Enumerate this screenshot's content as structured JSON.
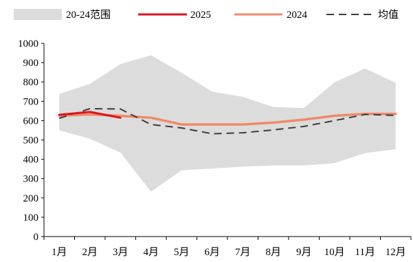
{
  "chart_data": {
    "type": "line",
    "categories": [
      "1月",
      "2月",
      "3月",
      "4月",
      "5月",
      "6月",
      "7月",
      "8月",
      "9月",
      "10月",
      "11月",
      "12月"
    ],
    "ylim": [
      0,
      1000
    ],
    "yticks": [
      0,
      100,
      200,
      300,
      400,
      500,
      600,
      700,
      800,
      900,
      1000
    ],
    "grid": false,
    "legend_position": "top",
    "band": {
      "name": "20-24范围",
      "color": "#dcdcdc",
      "upper": [
        738,
        790,
        893,
        938,
        848,
        750,
        723,
        671,
        665,
        798,
        870,
        795
      ],
      "lower": [
        550,
        506,
        435,
        232,
        343,
        352,
        362,
        368,
        368,
        380,
        432,
        452
      ]
    },
    "series": [
      {
        "name": "2025",
        "color": "#d7141e",
        "style": "solid",
        "values": [
          630,
          645,
          615,
          null,
          null,
          null,
          null,
          null,
          null,
          null,
          null,
          null
        ]
      },
      {
        "name": "2024",
        "color": "#f0896a",
        "style": "solid",
        "values": [
          625,
          632,
          625,
          615,
          580,
          580,
          580,
          590,
          605,
          625,
          635,
          635
        ]
      },
      {
        "name": "均值",
        "color": "#3a3a3a",
        "style": "dashed",
        "values": [
          612,
          662,
          660,
          580,
          562,
          532,
          537,
          552,
          570,
          600,
          632,
          627
        ]
      }
    ]
  }
}
